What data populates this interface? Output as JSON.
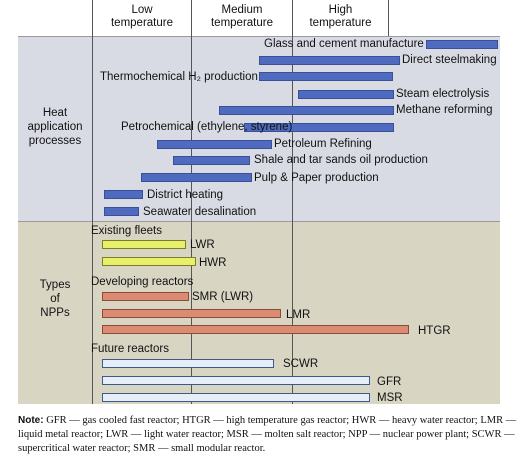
{
  "headers": [
    "Low\ntemperature",
    "Medium\ntemperature",
    "High\ntemperature"
  ],
  "sections": {
    "heat": "Heat\napplication\nprocesses",
    "npp": "Types\nof\nNPPs"
  },
  "colors": {
    "heat_bg": "#d9dbe4",
    "npp_bg": "#d8d5c3",
    "heat_bar": "#4f6bbf",
    "heat_bar_border": "#3a4f95",
    "existing_bar": "#e8ef6a",
    "existing_bar_border": "#7a7f2a",
    "developing_bar": "#d98b74",
    "developing_bar_border": "#8c4a38",
    "future_bar": "#e8eef8",
    "future_bar_border": "#3a5a8c"
  },
  "heat_processes": [
    {
      "label": "Glass and cement manufacture"
    },
    {
      "label": "Direct steelmaking"
    },
    {
      "label": "Thermochemical H₂ production"
    },
    {
      "label": "Steam electrolysis"
    },
    {
      "label": "Methane reforming"
    },
    {
      "label": "Petrochemical (ethylene, styrene)"
    },
    {
      "label": "Petroleum Refining"
    },
    {
      "label": "Shale and tar sands oil production"
    },
    {
      "label": "Pulp & Paper production"
    },
    {
      "label": "District heating"
    },
    {
      "label": "Seawater desalination"
    }
  ],
  "reactor_groups": [
    {
      "title": "Existing fleets",
      "style": "existing",
      "items": [
        {
          "label": "LWR"
        },
        {
          "label": "HWR"
        }
      ]
    },
    {
      "title": "Developing reactors",
      "style": "developing",
      "items": [
        {
          "label": "SMR (LWR)"
        },
        {
          "label": "LMR"
        },
        {
          "label": "HTGR"
        }
      ]
    },
    {
      "title": "Future reactors",
      "style": "future",
      "items": [
        {
          "label": "SCWR"
        },
        {
          "label": "GFR"
        },
        {
          "label": "MSR"
        }
      ]
    }
  ],
  "note": {
    "label": "Note:",
    "text": "GFR — gas cooled fast reactor; HTGR — high temperature gas reactor; HWR — heavy water reactor; LMR — liquid metal reactor; LWR — light water reactor; MSR — molten salt reactor; NPP — nuclear power plant; SCWR — supercritical water reactor; SMR — small modular reactor."
  }
}
